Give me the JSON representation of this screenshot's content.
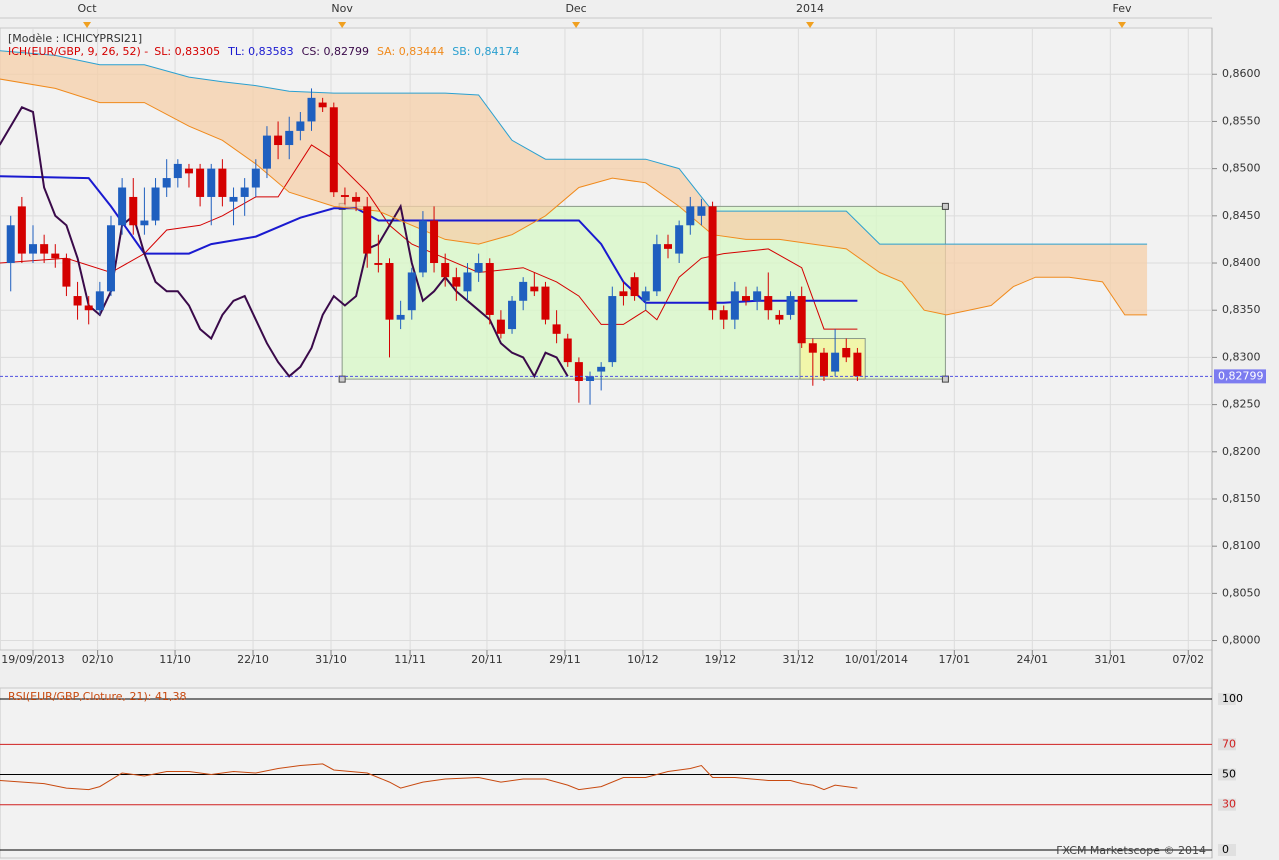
{
  "footer": "FXCM Marketscope © 2014",
  "chart_data": [
    {
      "type": "candlestick",
      "model": "[Modèle : ICHICYPRSI21]",
      "indicator": "ICH(EUR/GBP, 9, 26, 52) -",
      "up_color": "#1f5fbf",
      "down_color": "#d40000",
      "xlim": [
        -2.962,
        105.83
      ],
      "ylim": [
        0.799,
        0.8649
      ],
      "yticks": [
        {
          "value": 0.8,
          "label": "0,8000"
        },
        {
          "value": 0.805,
          "label": "0,8050"
        },
        {
          "value": 0.81,
          "label": "0,8100"
        },
        {
          "value": 0.815,
          "label": "0,8150"
        },
        {
          "value": 0.82,
          "label": "0,8200"
        },
        {
          "value": 0.825,
          "label": "0,8250"
        },
        {
          "value": 0.83,
          "label": "0,8300"
        },
        {
          "value": 0.835,
          "label": "0,8350"
        },
        {
          "value": 0.84,
          "label": "0,8400"
        },
        {
          "value": 0.845,
          "label": "0,8450"
        },
        {
          "value": 0.85,
          "label": "0,8500"
        },
        {
          "value": 0.855,
          "label": "0,8550"
        },
        {
          "value": 0.86,
          "label": "0,8600"
        }
      ],
      "xticks": [
        {
          "value": 0,
          "label": "19/09/2013"
        },
        {
          "value": 5.8,
          "label": "02/10"
        },
        {
          "value": 12.75,
          "label": "11/10"
        },
        {
          "value": 19.75,
          "label": "22/10"
        },
        {
          "value": 26.75,
          "label": "31/10"
        },
        {
          "value": 33.85,
          "label": "11/11"
        },
        {
          "value": 40.75,
          "label": "20/11"
        },
        {
          "value": 47.75,
          "label": "29/11"
        },
        {
          "value": 54.75,
          "label": "10/12"
        },
        {
          "value": 61.7,
          "label": "19/12"
        },
        {
          "value": 68.7,
          "label": "31/12"
        },
        {
          "value": 75.7,
          "label": "10/01/2014"
        },
        {
          "value": 82.7,
          "label": "17/01"
        },
        {
          "value": 89.7,
          "label": "24/01"
        },
        {
          "value": 96.7,
          "label": "31/01"
        },
        {
          "value": 103.7,
          "label": "07/02"
        }
      ],
      "month_ticks": [
        {
          "value": 4.85,
          "label": "Oct"
        },
        {
          "value": 27.75,
          "label": "Nov"
        },
        {
          "value": 48.75,
          "label": "Dec"
        },
        {
          "value": 69.75,
          "label": "2014"
        },
        {
          "value": 97.75,
          "label": "Fev"
        }
      ],
      "x": [
        -2,
        -1,
        0,
        1,
        2,
        3,
        4,
        5,
        6,
        7,
        8,
        9,
        10,
        11,
        12,
        13,
        14,
        15,
        16,
        17,
        18,
        19,
        20,
        21,
        22,
        23,
        24,
        25,
        26,
        27,
        28,
        29,
        30,
        31,
        32,
        33,
        34,
        35,
        36,
        37,
        38,
        39,
        40,
        41,
        42,
        43,
        44,
        45,
        46,
        47,
        48,
        49,
        50,
        51,
        52,
        53,
        54,
        55,
        56,
        57,
        58,
        59,
        60,
        61,
        62,
        63,
        64,
        65,
        66,
        67,
        68,
        69,
        70,
        71,
        72,
        73,
        74
      ],
      "open": [
        0.84,
        0.846,
        0.841,
        0.842,
        0.841,
        0.8405,
        0.8365,
        0.8355,
        0.835,
        0.837,
        0.844,
        0.847,
        0.844,
        0.8445,
        0.848,
        0.849,
        0.85,
        0.85,
        0.847,
        0.85,
        0.8465,
        0.847,
        0.848,
        0.85,
        0.8535,
        0.8525,
        0.854,
        0.855,
        0.857,
        0.8565,
        0.8472,
        0.847,
        0.846,
        0.84,
        0.84,
        0.834,
        0.835,
        0.839,
        0.8445,
        0.84,
        0.8385,
        0.837,
        0.839,
        0.84,
        0.834,
        0.833,
        0.836,
        0.8375,
        0.8375,
        0.8335,
        0.832,
        0.8295,
        0.8275,
        0.8285,
        0.8295,
        0.837,
        0.8385,
        0.836,
        0.837,
        0.842,
        0.841,
        0.844,
        0.845,
        0.846,
        0.835,
        0.834,
        0.8365,
        0.836,
        0.8365,
        0.8345,
        0.8345,
        0.8365,
        0.8315,
        0.8305,
        0.8285,
        0.831,
        0.8305
      ],
      "high": [
        0.845,
        0.847,
        0.844,
        0.843,
        0.842,
        0.841,
        0.838,
        0.8365,
        0.838,
        0.845,
        0.849,
        0.849,
        0.848,
        0.849,
        0.851,
        0.851,
        0.8505,
        0.8505,
        0.8505,
        0.851,
        0.848,
        0.849,
        0.851,
        0.8545,
        0.855,
        0.8555,
        0.856,
        0.8585,
        0.8575,
        0.857,
        0.848,
        0.8475,
        0.847,
        0.843,
        0.8405,
        0.836,
        0.8395,
        0.8455,
        0.846,
        0.841,
        0.8395,
        0.84,
        0.841,
        0.8405,
        0.835,
        0.8365,
        0.8385,
        0.839,
        0.838,
        0.835,
        0.8325,
        0.83,
        0.8285,
        0.8295,
        0.8375,
        0.838,
        0.839,
        0.8375,
        0.843,
        0.843,
        0.8445,
        0.847,
        0.8468,
        0.8465,
        0.8355,
        0.838,
        0.8375,
        0.8375,
        0.839,
        0.835,
        0.837,
        0.8375,
        0.832,
        0.831,
        0.833,
        0.832,
        0.831
      ],
      "low": [
        0.837,
        0.84,
        0.84,
        0.84,
        0.8395,
        0.8365,
        0.834,
        0.8335,
        0.8345,
        0.8365,
        0.843,
        0.843,
        0.843,
        0.844,
        0.847,
        0.848,
        0.848,
        0.846,
        0.844,
        0.846,
        0.844,
        0.845,
        0.847,
        0.849,
        0.851,
        0.851,
        0.853,
        0.854,
        0.856,
        0.847,
        0.8462,
        0.8455,
        0.8395,
        0.839,
        0.83,
        0.833,
        0.834,
        0.8385,
        0.839,
        0.8375,
        0.836,
        0.836,
        0.838,
        0.8335,
        0.832,
        0.8325,
        0.835,
        0.8365,
        0.8335,
        0.8315,
        0.829,
        0.8252,
        0.825,
        0.8265,
        0.829,
        0.8355,
        0.836,
        0.835,
        0.8365,
        0.8405,
        0.84,
        0.843,
        0.844,
        0.834,
        0.833,
        0.833,
        0.8355,
        0.835,
        0.834,
        0.8335,
        0.834,
        0.831,
        0.827,
        0.8275,
        0.828,
        0.8295,
        0.8275
      ],
      "close": [
        0.844,
        0.841,
        0.842,
        0.841,
        0.8405,
        0.8375,
        0.8355,
        0.835,
        0.837,
        0.844,
        0.848,
        0.844,
        0.8445,
        0.848,
        0.849,
        0.8505,
        0.8495,
        0.847,
        0.85,
        0.847,
        0.847,
        0.848,
        0.85,
        0.8535,
        0.8525,
        0.854,
        0.855,
        0.8575,
        0.8565,
        0.8475,
        0.847,
        0.8465,
        0.841,
        0.8398,
        0.834,
        0.8345,
        0.839,
        0.8445,
        0.84,
        0.8385,
        0.8375,
        0.839,
        0.84,
        0.8345,
        0.8325,
        0.836,
        0.838,
        0.837,
        0.834,
        0.8325,
        0.8295,
        0.8275,
        0.828,
        0.829,
        0.8365,
        0.8365,
        0.8365,
        0.837,
        0.842,
        0.8415,
        0.844,
        0.846,
        0.846,
        0.835,
        0.834,
        0.837,
        0.836,
        0.837,
        0.835,
        0.834,
        0.8365,
        0.8315,
        0.8305,
        0.828,
        0.8305,
        0.83,
        0.828
      ],
      "lines": [
        {
          "name": "SL: 0,83305",
          "color": "#d40000",
          "width": 1,
          "x": [
            -3,
            3,
            7,
            10,
            12,
            15,
            17,
            20,
            22,
            25,
            27,
            30,
            32,
            34,
            36,
            40,
            44,
            47,
            49,
            51,
            53,
            55,
            56,
            58,
            60,
            62,
            66,
            69,
            71,
            74
          ],
          "values": [
            0.84,
            0.8405,
            0.839,
            0.841,
            0.8435,
            0.844,
            0.845,
            0.847,
            0.847,
            0.8525,
            0.851,
            0.8475,
            0.844,
            0.842,
            0.841,
            0.839,
            0.8395,
            0.838,
            0.8365,
            0.8335,
            0.8335,
            0.835,
            0.834,
            0.8385,
            0.8405,
            0.841,
            0.8415,
            0.8395,
            0.833,
            0.833
          ]
        },
        {
          "name": "TL: 0,83583",
          "color": "#1a1ad0",
          "width": 2,
          "x": [
            -3,
            5,
            7,
            10,
            14,
            16,
            20,
            24,
            27,
            29,
            31,
            49,
            51,
            53,
            55,
            62,
            65,
            74
          ],
          "values": [
            0.8492,
            0.849,
            0.846,
            0.841,
            0.841,
            0.842,
            0.8428,
            0.8448,
            0.8458,
            0.8458,
            0.8445,
            0.8445,
            0.842,
            0.838,
            0.8358,
            0.8358,
            0.836,
            0.836
          ]
        },
        {
          "name": "CS: 0,82799",
          "color": "#3a0a4a",
          "width": 2,
          "x": [
            -3,
            -2,
            -1,
            0,
            1,
            2,
            3,
            4,
            5,
            6,
            7,
            8,
            9,
            10,
            11,
            12,
            13,
            14,
            15,
            16,
            17,
            18,
            19,
            20,
            21,
            22,
            23,
            24,
            25,
            26,
            27,
            28,
            29,
            30,
            31,
            32,
            33,
            34,
            35,
            36,
            37,
            38,
            39,
            40,
            41,
            42,
            43,
            44,
            45,
            46,
            47,
            48
          ],
          "values": [
            0.8525,
            0.8545,
            0.8565,
            0.856,
            0.848,
            0.845,
            0.844,
            0.8405,
            0.8355,
            0.8345,
            0.837,
            0.844,
            0.845,
            0.841,
            0.838,
            0.837,
            0.837,
            0.8355,
            0.833,
            0.832,
            0.8345,
            0.836,
            0.8365,
            0.834,
            0.8315,
            0.8295,
            0.828,
            0.829,
            0.831,
            0.8345,
            0.8365,
            0.8355,
            0.8365,
            0.8415,
            0.842,
            0.844,
            0.846,
            0.84,
            0.836,
            0.837,
            0.8385,
            0.837,
            0.836,
            0.835,
            0.834,
            0.8315,
            0.8305,
            0.83,
            0.828,
            0.8305,
            0.83,
            0.828
          ]
        },
        {
          "name": "SA: 0,83444",
          "color": "#f08a1c",
          "width": 1,
          "x": [
            -3,
            2,
            6,
            10,
            14,
            17,
            20,
            23,
            27,
            31,
            34,
            37,
            40,
            43,
            46,
            49,
            52,
            55,
            58,
            61,
            64,
            67,
            70,
            73,
            76,
            78,
            80,
            82,
            84,
            86,
            88,
            90,
            93,
            96,
            98,
            100
          ],
          "values": [
            0.8595,
            0.8585,
            0.857,
            0.857,
            0.8545,
            0.853,
            0.8505,
            0.8475,
            0.846,
            0.8455,
            0.844,
            0.8425,
            0.842,
            0.843,
            0.845,
            0.848,
            0.849,
            0.8485,
            0.846,
            0.843,
            0.8425,
            0.8425,
            0.842,
            0.8415,
            0.839,
            0.838,
            0.835,
            0.8345,
            0.835,
            0.8355,
            0.8375,
            0.8385,
            0.8385,
            0.838,
            0.8345,
            0.8345
          ]
        },
        {
          "name": "SB: 0,84174",
          "color": "#2aa0d0",
          "width": 1,
          "x": [
            -3,
            2,
            6,
            10,
            14,
            17,
            20,
            23,
            27,
            31,
            34,
            37,
            40,
            43,
            46,
            49,
            52,
            55,
            58,
            61,
            64,
            67,
            70,
            73,
            76,
            78,
            80,
            82,
            84,
            86,
            88,
            90,
            93,
            96,
            98,
            100
          ],
          "values": [
            0.8625,
            0.862,
            0.861,
            0.861,
            0.8597,
            0.8592,
            0.8588,
            0.8582,
            0.858,
            0.858,
            0.858,
            0.858,
            0.8578,
            0.853,
            0.851,
            0.851,
            0.851,
            0.851,
            0.85,
            0.8455,
            0.8455,
            0.8455,
            0.8455,
            0.8455,
            0.842,
            0.842,
            0.842,
            0.842,
            0.842,
            0.842,
            0.842,
            0.842,
            0.842,
            0.842,
            0.842,
            0.842
          ]
        }
      ],
      "cloud_color": "#f5cfa8",
      "rectangles": [
        {
          "x": [
            27.75,
            81.9
          ],
          "y": [
            0.8277,
            0.846
          ],
          "color": "#d8f7c8"
        },
        {
          "x": [
            68.85,
            74.7
          ],
          "y": [
            0.8277,
            0.832
          ],
          "color": "#f5f5a0"
        }
      ],
      "price_line": {
        "value": 0.82799,
        "label": "0,82799"
      }
    },
    {
      "type": "line",
      "title": "RSI(EUR/GBP,Cloture, 21): 41,38",
      "xlim": [
        -2.962,
        105.83
      ],
      "ylim": [
        -5.3,
        107.3
      ],
      "yticks": [
        100,
        70,
        50,
        30,
        0
      ],
      "level_colors": [
        "#000000",
        "#d02020",
        "#000000",
        "#d02020",
        "#000000"
      ],
      "series": [
        {
          "color": "#c84a10",
          "x": [
            -3,
            1,
            3,
            5,
            6,
            8,
            10,
            12,
            14,
            16,
            18,
            20,
            22,
            24,
            26,
            27,
            30,
            32,
            33,
            35,
            37,
            40,
            42,
            44,
            46,
            48,
            49,
            51,
            53,
            55,
            57,
            59,
            60,
            61,
            63,
            66,
            68,
            69,
            70,
            71,
            72,
            74
          ],
          "values": [
            46,
            44,
            41,
            40,
            42,
            51,
            49,
            52,
            52,
            50,
            52,
            51,
            54,
            56,
            57,
            53,
            51,
            45,
            41,
            45,
            47,
            48,
            45,
            47,
            47,
            43,
            40,
            42,
            48,
            48,
            52,
            54,
            56,
            48,
            48,
            46,
            46,
            44,
            43,
            40,
            43,
            41
          ]
        }
      ]
    }
  ]
}
